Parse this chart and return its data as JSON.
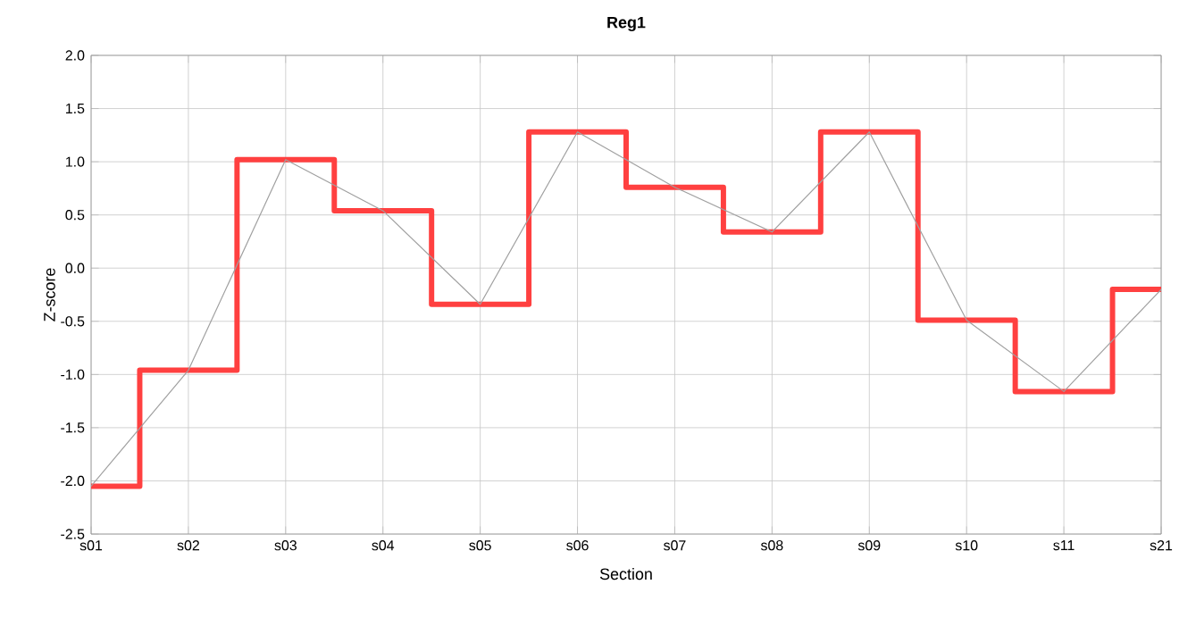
{
  "chart_data": {
    "type": "line",
    "title": "Reg1",
    "xlabel": "Section",
    "ylabel": "Z-score",
    "categories": [
      "s01",
      "s02",
      "s03",
      "s04",
      "s05",
      "s06",
      "s07",
      "s08",
      "s09",
      "s10",
      "s11",
      "s21"
    ],
    "series": [
      {
        "type": "step",
        "color": "#ff4040",
        "values": [
          -2.05,
          -0.96,
          1.02,
          0.54,
          -0.34,
          1.28,
          0.76,
          0.34,
          1.28,
          -0.49,
          -1.16,
          -0.2
        ]
      },
      {
        "color": "#a0a0a0",
        "values": [
          -2.05,
          -0.96,
          1.02,
          0.54,
          -0.34,
          1.28,
          0.76,
          0.34,
          1.28,
          -0.49,
          -1.16,
          -0.2
        ]
      }
    ],
    "ylim": [
      -2.5,
      2.0
    ],
    "yticks": [
      {
        "value": -2.5,
        "label": "-2.5"
      },
      {
        "value": -2,
        "label": "-2.0"
      },
      {
        "value": -1.5,
        "label": "-1.5"
      },
      {
        "value": -1,
        "label": "-1.0"
      },
      {
        "value": -0.5,
        "label": "-0.5"
      },
      {
        "value": 0,
        "label": "0.0"
      },
      {
        "value": 0.5,
        "label": "0.5"
      },
      {
        "value": 1,
        "label": "1.0"
      },
      {
        "value": 1.5,
        "label": "1.5"
      },
      {
        "value": 2,
        "label": "2.0"
      }
    ],
    "grid": true,
    "marker": "none"
  }
}
